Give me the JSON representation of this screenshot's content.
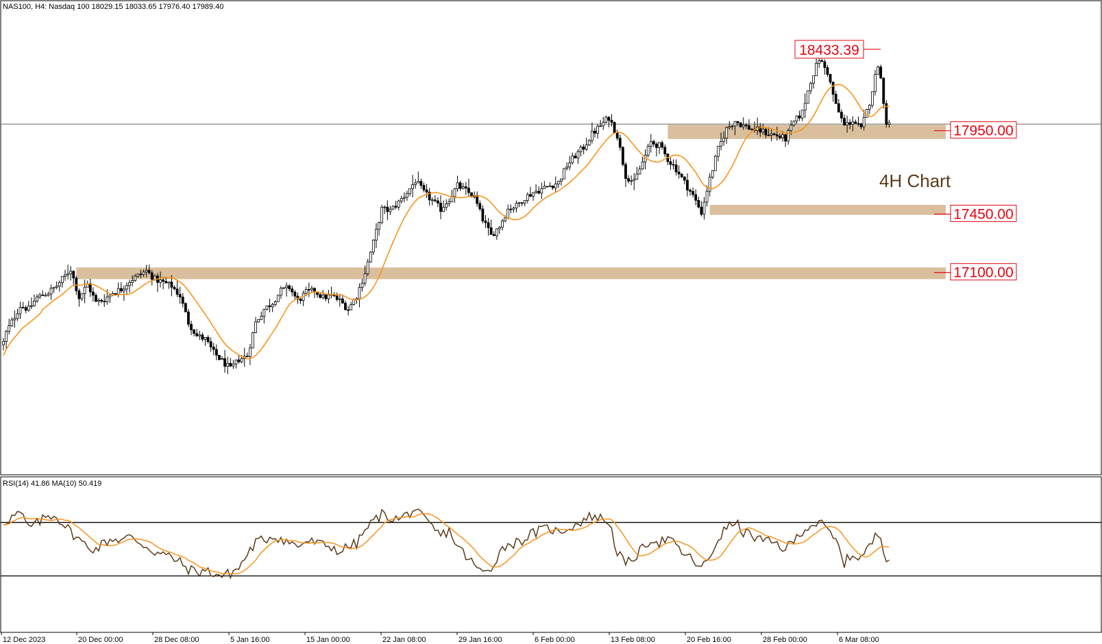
{
  "header": {
    "text": "NAS100, H4:  Nasdaq 100  18029.15 18033.65 17976.40 17989.40"
  },
  "annotation_text": "4H Chart",
  "rsi_header": {
    "text": "RSI(14) 41.86 MA(10) 50.419"
  },
  "colors": {
    "candle": "#000000",
    "ma": "#f7941d",
    "zone": "#d2b48c",
    "label": "#e30613",
    "rsi": "#5a3a1a",
    "annotation": "#5a3a1a"
  },
  "chart_data": [
    {
      "type": "candlestick",
      "symbol": "NAS100",
      "timeframe": "H4",
      "description": "Nasdaq 100",
      "ohlc_last": {
        "open": 18029.15,
        "high": 18033.65,
        "low": 17976.4,
        "close": 17989.4
      },
      "x_tick_labels": [
        "12 Dec 2023",
        "20 Dec 00:00",
        "28 Dec 08:00",
        "5 Jan 16:00",
        "15 Jan 00:00",
        "22 Jan 08:00",
        "29 Jan 16:00",
        "6 Feb 00:00",
        "13 Feb 08:00",
        "20 Feb 16:00",
        "28 Feb 00:00",
        "6 Mar 08:00"
      ],
      "price_lines": [
        {
          "label": "17950.00",
          "price": 17950.0
        },
        {
          "label": "17450.00",
          "price": 17450.0
        },
        {
          "label": "17100.00",
          "price": 17100.0
        }
      ],
      "peak_label": {
        "label": "18433.39",
        "price": 18433.39
      },
      "current_price_line": 17989.4,
      "support_zones": [
        {
          "from_bar": 237,
          "low": 17900,
          "high": 17985
        },
        {
          "from_bar": 252,
          "low": 17445,
          "high": 17505
        },
        {
          "from_bar": 26,
          "low": 17060,
          "high": 17130
        }
      ],
      "ylim": [
        15900,
        18700
      ],
      "price_path": [
        [
          0,
          16680
        ],
        [
          1,
          16740
        ],
        [
          6,
          16900
        ],
        [
          9,
          16880
        ],
        [
          12,
          16950
        ],
        [
          16,
          16980
        ],
        [
          19,
          17020
        ],
        [
          21,
          17060
        ],
        [
          24,
          17120
        ],
        [
          27,
          16950
        ],
        [
          30,
          17030
        ],
        [
          33,
          16920
        ],
        [
          36,
          16940
        ],
        [
          39,
          16980
        ],
        [
          42,
          17000
        ],
        [
          45,
          17050
        ],
        [
          48,
          17080
        ],
        [
          51,
          17110
        ],
        [
          54,
          17060
        ],
        [
          57,
          17040
        ],
        [
          60,
          17020
        ],
        [
          63,
          16960
        ],
        [
          66,
          16800
        ],
        [
          69,
          16720
        ],
        [
          72,
          16700
        ],
        [
          75,
          16620
        ],
        [
          78,
          16570
        ],
        [
          81,
          16520
        ],
        [
          84,
          16580
        ],
        [
          87,
          16600
        ],
        [
          90,
          16800
        ],
        [
          93,
          16880
        ],
        [
          96,
          16920
        ],
        [
          99,
          16990
        ],
        [
          102,
          17010
        ],
        [
          105,
          16930
        ],
        [
          108,
          16980
        ],
        [
          111,
          16990
        ],
        [
          114,
          16950
        ],
        [
          117,
          16960
        ],
        [
          120,
          16930
        ],
        [
          123,
          16880
        ],
        [
          126,
          16960
        ],
        [
          129,
          17100
        ],
        [
          132,
          17280
        ],
        [
          135,
          17480
        ],
        [
          138,
          17470
        ],
        [
          141,
          17520
        ],
        [
          144,
          17580
        ],
        [
          147,
          17650
        ],
        [
          150,
          17580
        ],
        [
          153,
          17530
        ],
        [
          156,
          17480
        ],
        [
          159,
          17540
        ],
        [
          162,
          17620
        ],
        [
          165,
          17590
        ],
        [
          168,
          17550
        ],
        [
          171,
          17420
        ],
        [
          174,
          17320
        ],
        [
          177,
          17380
        ],
        [
          180,
          17480
        ],
        [
          183,
          17500
        ],
        [
          186,
          17550
        ],
        [
          189,
          17580
        ],
        [
          192,
          17600
        ],
        [
          195,
          17620
        ],
        [
          198,
          17640
        ],
        [
          201,
          17740
        ],
        [
          204,
          17800
        ],
        [
          207,
          17850
        ],
        [
          210,
          17930
        ],
        [
          213,
          17980
        ],
        [
          216,
          18030
        ],
        [
          219,
          17920
        ],
        [
          222,
          17680
        ],
        [
          225,
          17640
        ],
        [
          228,
          17760
        ],
        [
          231,
          17880
        ],
        [
          234,
          17860
        ],
        [
          237,
          17780
        ],
        [
          240,
          17720
        ],
        [
          243,
          17640
        ],
        [
          246,
          17560
        ],
        [
          249,
          17460
        ],
        [
          252,
          17660
        ],
        [
          255,
          17840
        ],
        [
          258,
          17960
        ],
        [
          261,
          18010
        ],
        [
          264,
          17980
        ],
        [
          267,
          17960
        ],
        [
          270,
          17950
        ],
        [
          273,
          17930
        ],
        [
          276,
          17920
        ],
        [
          279,
          17900
        ],
        [
          282,
          18000
        ],
        [
          285,
          18060
        ],
        [
          288,
          18250
        ],
        [
          291,
          18380
        ],
        [
          294,
          18300
        ],
        [
          297,
          18100
        ],
        [
          300,
          17980
        ],
        [
          303,
          18010
        ],
        [
          306,
          17960
        ],
        [
          309,
          18120
        ],
        [
          312,
          18350
        ],
        [
          313,
          18260
        ],
        [
          315,
          18000
        ],
        [
          316,
          17990
        ]
      ]
    },
    {
      "type": "line",
      "name": "RSI(14)",
      "current": 41.86,
      "ma_name": "MA(10)",
      "ma_current": 50.419,
      "levels": [
        70,
        30
      ],
      "ylim": [
        0,
        100
      ],
      "path": [
        [
          0,
          70
        ],
        [
          3,
          74
        ],
        [
          6,
          77
        ],
        [
          9,
          66
        ],
        [
          12,
          69
        ],
        [
          15,
          74
        ],
        [
          18,
          76
        ],
        [
          21,
          70
        ],
        [
          24,
          63
        ],
        [
          27,
          57
        ],
        [
          30,
          52
        ],
        [
          33,
          50
        ],
        [
          36,
          55
        ],
        [
          39,
          58
        ],
        [
          42,
          57
        ],
        [
          45,
          59
        ],
        [
          48,
          56
        ],
        [
          51,
          52
        ],
        [
          54,
          48
        ],
        [
          57,
          46
        ],
        [
          60,
          44
        ],
        [
          63,
          40
        ],
        [
          66,
          35
        ],
        [
          69,
          33
        ],
        [
          72,
          34
        ],
        [
          75,
          32
        ],
        [
          78,
          30
        ],
        [
          81,
          32
        ],
        [
          84,
          36
        ],
        [
          87,
          46
        ],
        [
          90,
          55
        ],
        [
          93,
          57
        ],
        [
          96,
          60
        ],
        [
          99,
          58
        ],
        [
          102,
          55
        ],
        [
          105,
          52
        ],
        [
          108,
          56
        ],
        [
          111,
          55
        ],
        [
          114,
          53
        ],
        [
          117,
          52
        ],
        [
          120,
          48
        ],
        [
          123,
          52
        ],
        [
          126,
          54
        ],
        [
          129,
          64
        ],
        [
          132,
          71
        ],
        [
          135,
          76
        ],
        [
          138,
          74
        ],
        [
          141,
          72
        ],
        [
          144,
          76
        ],
        [
          147,
          80
        ],
        [
          150,
          72
        ],
        [
          153,
          66
        ],
        [
          156,
          60
        ],
        [
          159,
          64
        ],
        [
          162,
          52
        ],
        [
          165,
          45
        ],
        [
          168,
          38
        ],
        [
          171,
          32
        ],
        [
          174,
          36
        ],
        [
          177,
          48
        ],
        [
          180,
          54
        ],
        [
          183,
          55
        ],
        [
          186,
          58
        ],
        [
          189,
          62
        ],
        [
          192,
          64
        ],
        [
          195,
          66
        ],
        [
          198,
          62
        ],
        [
          201,
          66
        ],
        [
          204,
          68
        ],
        [
          207,
          72
        ],
        [
          210,
          75
        ],
        [
          213,
          73
        ],
        [
          216,
          71
        ],
        [
          219,
          48
        ],
        [
          222,
          38
        ],
        [
          225,
          44
        ],
        [
          228,
          50
        ],
        [
          231,
          58
        ],
        [
          234,
          55
        ],
        [
          237,
          58
        ],
        [
          240,
          52
        ],
        [
          243,
          46
        ],
        [
          246,
          42
        ],
        [
          249,
          35
        ],
        [
          252,
          44
        ],
        [
          255,
          58
        ],
        [
          258,
          66
        ],
        [
          261,
          70
        ],
        [
          264,
          63
        ],
        [
          267,
          60
        ],
        [
          270,
          57
        ],
        [
          273,
          55
        ],
        [
          276,
          54
        ],
        [
          279,
          50
        ],
        [
          282,
          56
        ],
        [
          285,
          64
        ],
        [
          288,
          68
        ],
        [
          291,
          70
        ],
        [
          294,
          64
        ],
        [
          297,
          56
        ],
        [
          300,
          40
        ],
        [
          303,
          46
        ],
        [
          306,
          44
        ],
        [
          309,
          52
        ],
        [
          312,
          62
        ],
        [
          313,
          58
        ],
        [
          315,
          44
        ],
        [
          316,
          41.86
        ]
      ]
    }
  ]
}
